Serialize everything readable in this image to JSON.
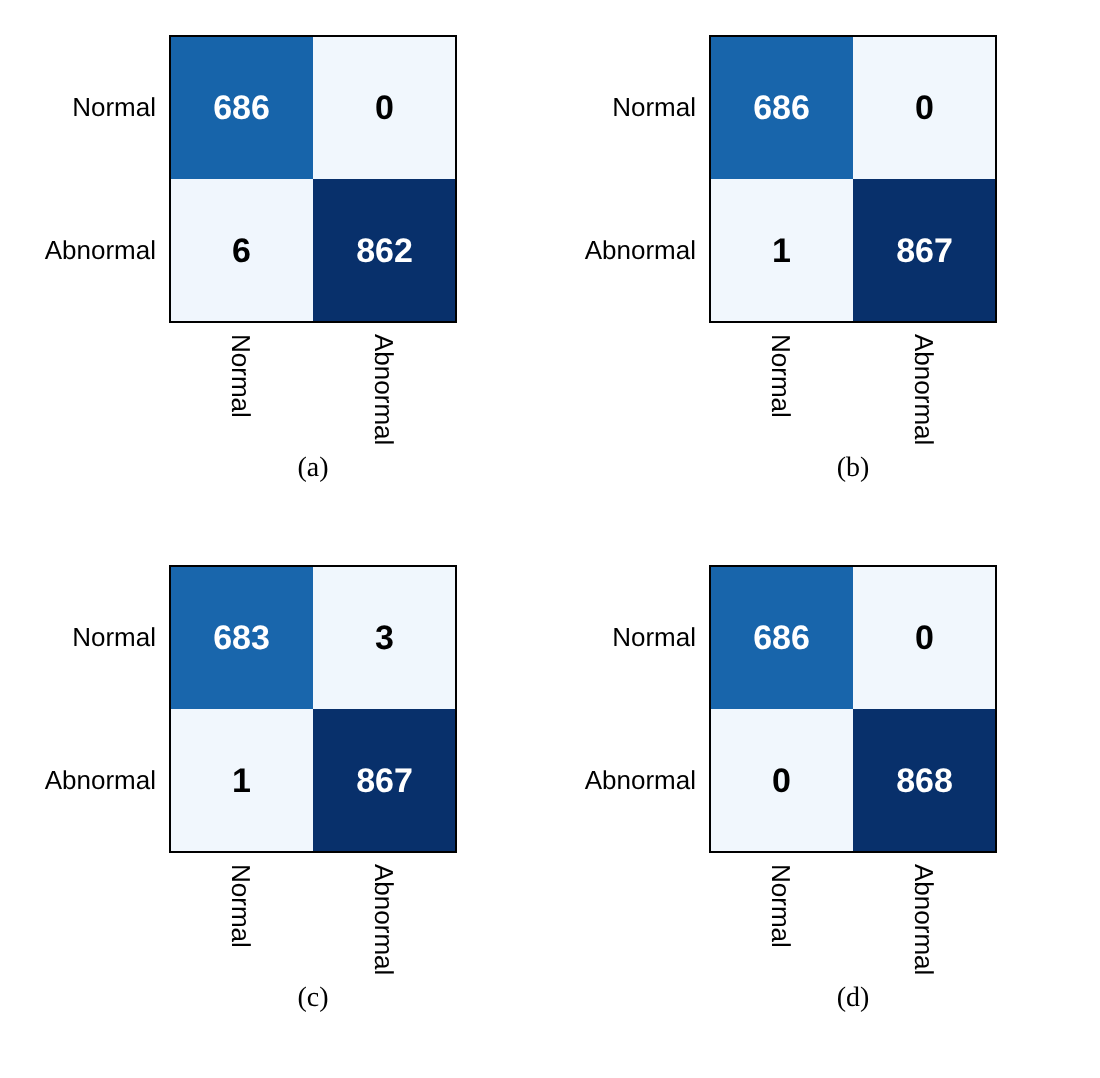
{
  "chart_data": [
    {
      "type": "heatmap",
      "title": "(a)",
      "categories": [
        "Normal",
        "Abnormal"
      ],
      "y_categories": [
        "Normal",
        "Abnormal"
      ],
      "cells": [
        [
          686,
          0
        ],
        [
          6,
          862
        ]
      ],
      "data_labels": true
    },
    {
      "type": "heatmap",
      "title": "(b)",
      "categories": [
        "Normal",
        "Abnormal"
      ],
      "y_categories": [
        "Normal",
        "Abnormal"
      ],
      "cells": [
        [
          686,
          0
        ],
        [
          1,
          867
        ]
      ],
      "data_labels": true
    },
    {
      "type": "heatmap",
      "title": "(c)",
      "categories": [
        "Normal",
        "Abnormal"
      ],
      "y_categories": [
        "Normal",
        "Abnormal"
      ],
      "cells": [
        [
          683,
          3
        ],
        [
          1,
          867
        ]
      ],
      "data_labels": true
    },
    {
      "type": "heatmap",
      "title": "(d)",
      "categories": [
        "Normal",
        "Abnormal"
      ],
      "y_categories": [
        "Normal",
        "Abnormal"
      ],
      "cells": [
        [
          686,
          0
        ],
        [
          0,
          868
        ]
      ],
      "data_labels": true
    }
  ]
}
